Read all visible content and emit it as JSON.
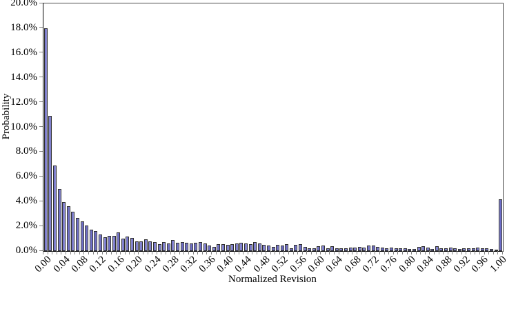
{
  "chart_data": {
    "type": "bar",
    "title": "",
    "xlabel": "Normalized Revision",
    "ylabel": "Probability",
    "ylim": [
      0,
      20
    ],
    "y_unit": "%",
    "grid": false,
    "legend": false,
    "x_label_rotation_deg": -45,
    "y_tick_labels": [
      "0.0%",
      "2.0%",
      "4.0%",
      "6.0%",
      "8.0%",
      "10.0%",
      "12.0%",
      "14.0%",
      "16.0%",
      "18.0%",
      "20.0%"
    ],
    "y_tick_values": [
      0,
      2,
      4,
      6,
      8,
      10,
      12,
      14,
      16,
      18,
      20
    ],
    "x_tick_labels": [
      "0.00",
      "0.04",
      "0.08",
      "0.12",
      "0.16",
      "0.20",
      "0.24",
      "0.28",
      "0.32",
      "0.36",
      "0.40",
      "0.44",
      "0.48",
      "0.52",
      "0.56",
      "0.60",
      "0.64",
      "0.68",
      "0.72",
      "0.76",
      "0.80",
      "0.84",
      "0.88",
      "0.92",
      "0.96",
      "1.00"
    ],
    "bin_start": 0.0,
    "bin_step": 0.01,
    "x": [
      0.0,
      0.01,
      0.02,
      0.03,
      0.04,
      0.05,
      0.06,
      0.07,
      0.08,
      0.09,
      0.1,
      0.11,
      0.12,
      0.13,
      0.14,
      0.15,
      0.16,
      0.17,
      0.18,
      0.19,
      0.2,
      0.21,
      0.22,
      0.23,
      0.24,
      0.25,
      0.26,
      0.27,
      0.28,
      0.29,
      0.3,
      0.31,
      0.32,
      0.33,
      0.34,
      0.35,
      0.36,
      0.37,
      0.38,
      0.39,
      0.4,
      0.41,
      0.42,
      0.43,
      0.44,
      0.45,
      0.46,
      0.47,
      0.48,
      0.49,
      0.5,
      0.51,
      0.52,
      0.53,
      0.54,
      0.55,
      0.56,
      0.57,
      0.58,
      0.59,
      0.6,
      0.61,
      0.62,
      0.63,
      0.64,
      0.65,
      0.66,
      0.67,
      0.68,
      0.69,
      0.7,
      0.71,
      0.72,
      0.73,
      0.74,
      0.75,
      0.76,
      0.77,
      0.78,
      0.79,
      0.8,
      0.81,
      0.82,
      0.83,
      0.84,
      0.85,
      0.86,
      0.87,
      0.88,
      0.89,
      0.9,
      0.91,
      0.92,
      0.93,
      0.94,
      0.95,
      0.96,
      0.97,
      0.98,
      0.99,
      1.0
    ],
    "values_percent": [
      18.0,
      10.9,
      6.9,
      5.0,
      3.95,
      3.6,
      3.15,
      2.7,
      2.4,
      2.05,
      1.75,
      1.6,
      1.35,
      1.1,
      1.2,
      1.2,
      1.5,
      1.0,
      1.15,
      1.05,
      0.8,
      0.8,
      0.95,
      0.8,
      0.75,
      0.55,
      0.7,
      0.6,
      0.9,
      0.65,
      0.7,
      0.65,
      0.6,
      0.65,
      0.7,
      0.6,
      0.45,
      0.35,
      0.55,
      0.55,
      0.5,
      0.55,
      0.6,
      0.65,
      0.6,
      0.55,
      0.75,
      0.6,
      0.5,
      0.45,
      0.35,
      0.5,
      0.45,
      0.55,
      0.2,
      0.5,
      0.55,
      0.35,
      0.25,
      0.25,
      0.4,
      0.45,
      0.25,
      0.4,
      0.2,
      0.25,
      0.2,
      0.3,
      0.3,
      0.35,
      0.3,
      0.45,
      0.45,
      0.35,
      0.3,
      0.25,
      0.3,
      0.25,
      0.25,
      0.2,
      0.15,
      0.15,
      0.35,
      0.4,
      0.3,
      0.15,
      0.4,
      0.2,
      0.2,
      0.3,
      0.2,
      0.15,
      0.2,
      0.25,
      0.25,
      0.3,
      0.2,
      0.25,
      0.15,
      0.1,
      4.2
    ],
    "colors": {
      "bar_fill_edge": "#a2a2d8",
      "bar_fill_core": "#5d5dc2",
      "bar_border": "#2f2f2f",
      "axis_line": "#000000",
      "tick_mark": "#808080",
      "text": "#000000",
      "background": "#ffffff"
    }
  }
}
